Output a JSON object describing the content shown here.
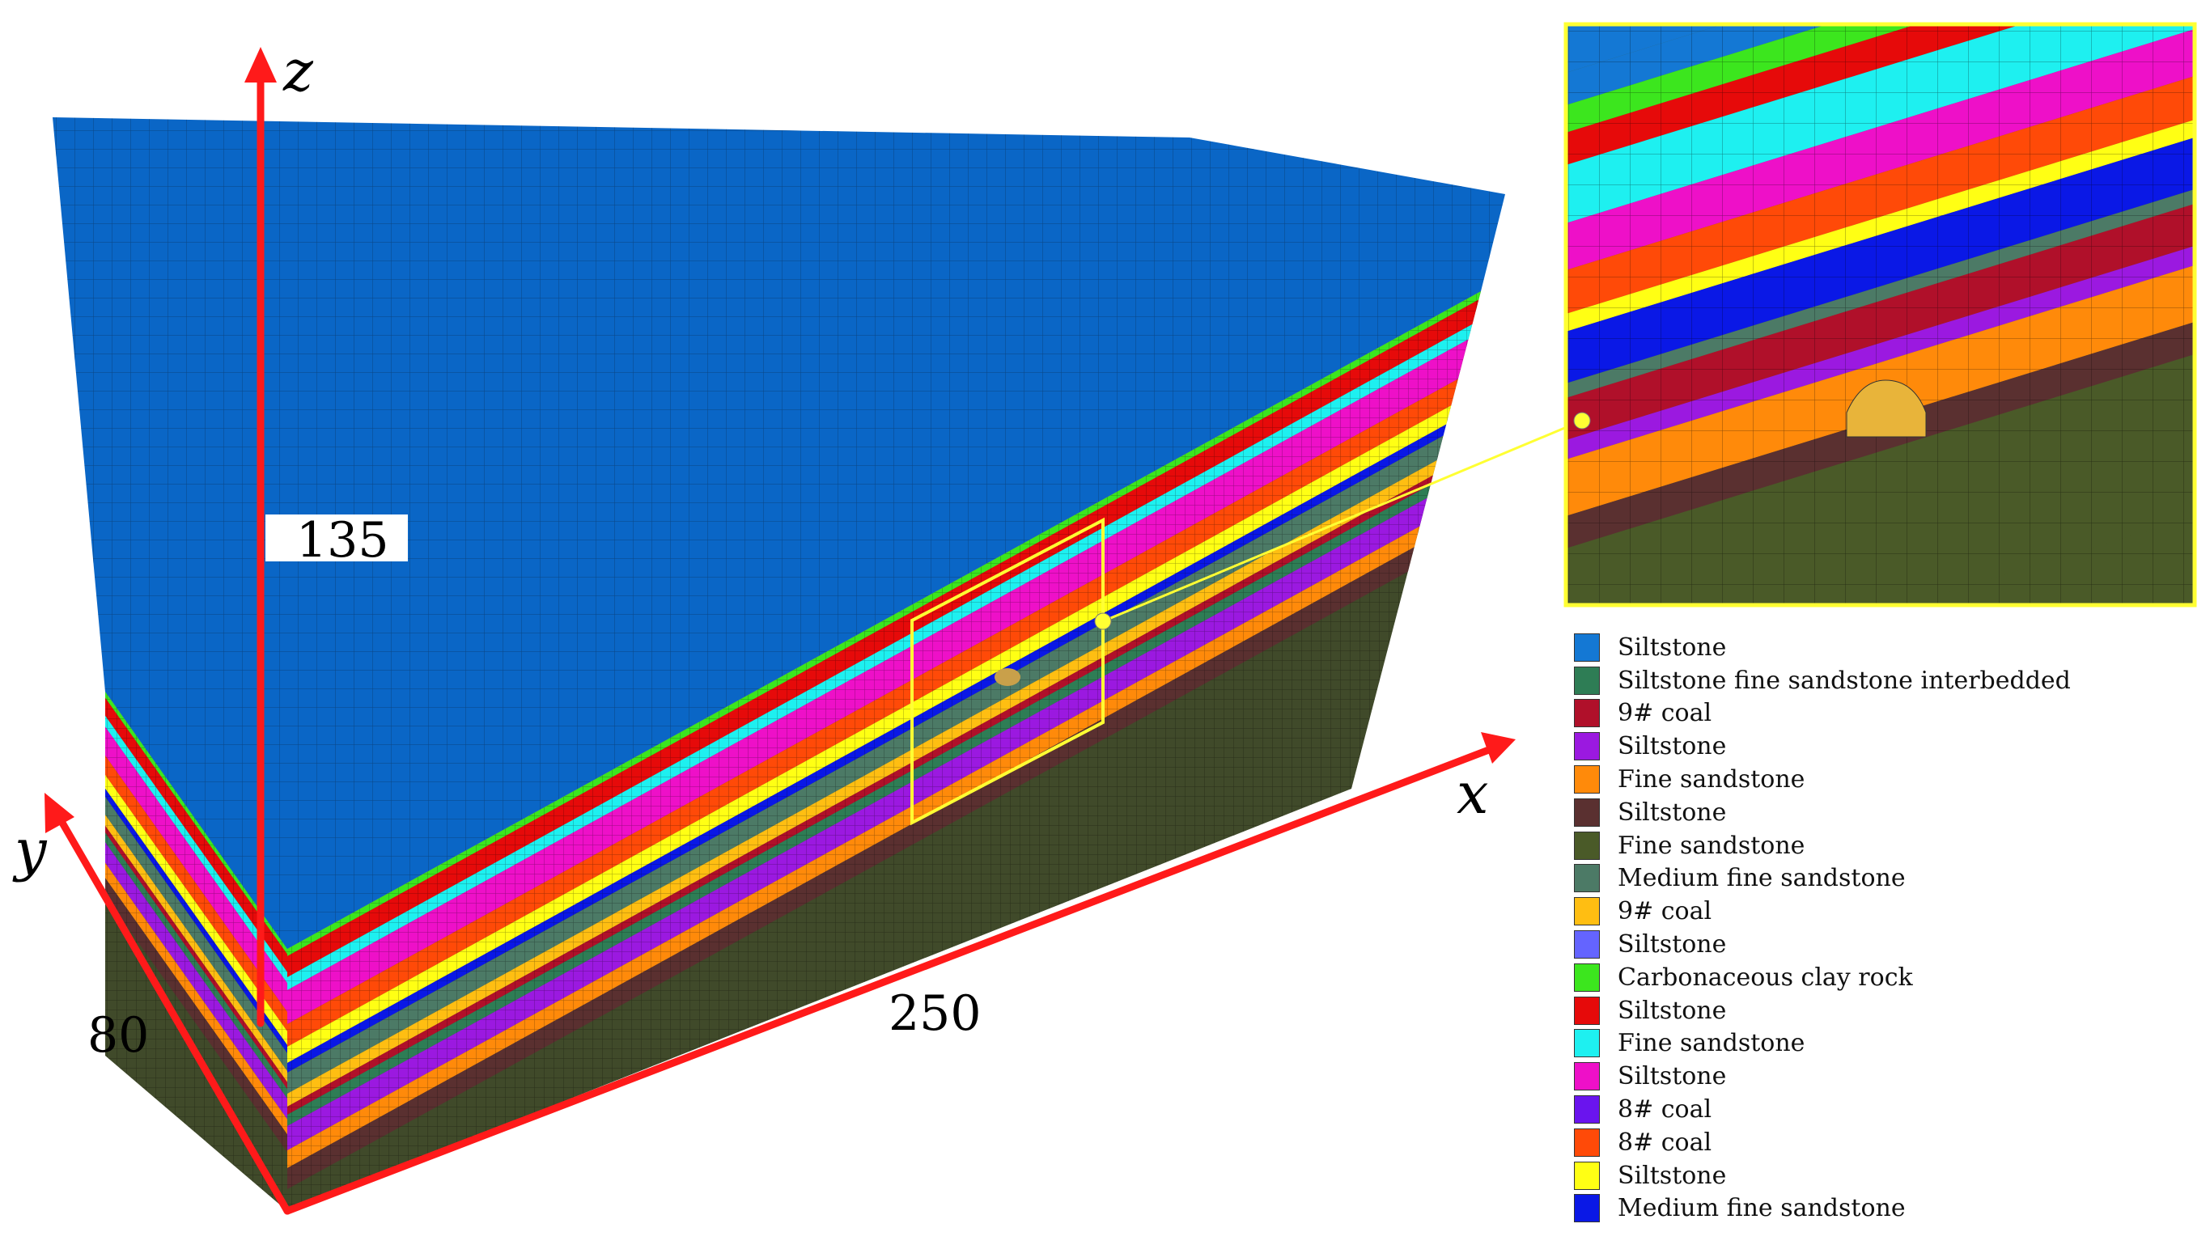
{
  "figure": {
    "axes": {
      "z": "z",
      "y": "y",
      "x": "x"
    },
    "dimensions": {
      "height": "135",
      "width": "80",
      "length": "250"
    }
  },
  "colors": {
    "top_block": "#0a66c6",
    "floor_block": "#404a2a",
    "mesh_line": "#0b2a4f",
    "axis": "#ff1a1a",
    "highlight": "#ffff33"
  },
  "legend": [
    {
      "label": "Siltstone",
      "color": "#1478d4"
    },
    {
      "label": "Siltstone fine sandstone interbedded",
      "color": "#2e7d55"
    },
    {
      "label": "9# coal",
      "color": "#b0102a"
    },
    {
      "label": "Siltstone",
      "color": "#9b19e0"
    },
    {
      "label": "Fine sandstone",
      "color": "#ff8a0a"
    },
    {
      "label": "Siltstone",
      "color": "#5a3030"
    },
    {
      "label": "Fine sandstone",
      "color": "#4a5a28"
    },
    {
      "label": "Medium fine sandstone",
      "color": "#4c7a66"
    },
    {
      "label": "9# coal",
      "color": "#ffbe12"
    },
    {
      "label": "Siltstone",
      "color": "#6464ff"
    },
    {
      "label": "Carbonaceous clay rock",
      "color": "#3ce61e"
    },
    {
      "label": "Siltstone",
      "color": "#e60a0a"
    },
    {
      "label": "Fine sandstone",
      "color": "#1ef0f0"
    },
    {
      "label": "Siltstone",
      "color": "#ee10c8"
    },
    {
      "label": "8# coal",
      "color": "#6a14ee"
    },
    {
      "label": "8# coal",
      "color": "#ff4a08"
    },
    {
      "label": "Siltstone",
      "color": "#ffff14"
    },
    {
      "label": "Medium fine sandstone",
      "color": "#0a18e6"
    }
  ]
}
